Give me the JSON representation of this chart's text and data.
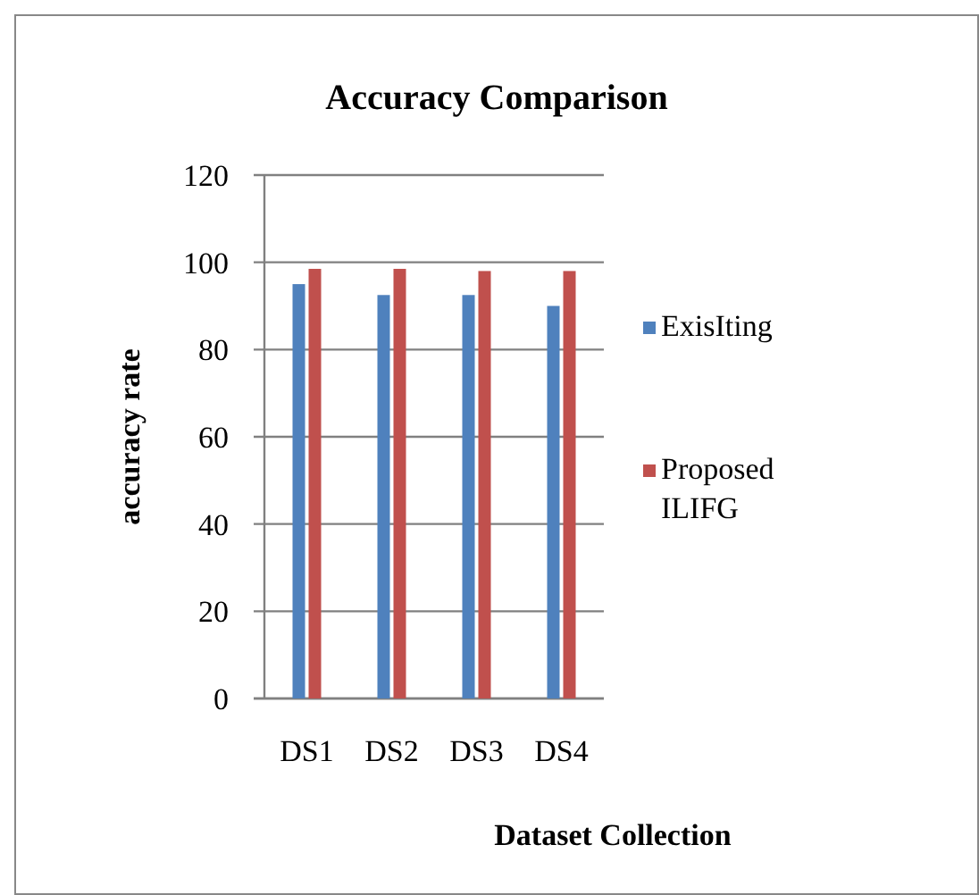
{
  "chart_data": {
    "type": "bar",
    "title": "Accuracy Comparison",
    "xlabel": "Dataset Collection",
    "ylabel": "accuracy rate",
    "categories": [
      "DS1",
      "DS2",
      "DS3",
      "DS4"
    ],
    "series": [
      {
        "name": "ExisIting",
        "color": "#4f81bd",
        "values": [
          95,
          92.5,
          92.5,
          90
        ]
      },
      {
        "name": "Proposed ILIFG",
        "color": "#c0504d",
        "values": [
          98.5,
          98.5,
          98,
          98
        ]
      }
    ],
    "ylim": [
      0,
      120
    ],
    "yticks": [
      0,
      20,
      40,
      60,
      80,
      100,
      120
    ],
    "grid": "y",
    "legend": "right"
  }
}
